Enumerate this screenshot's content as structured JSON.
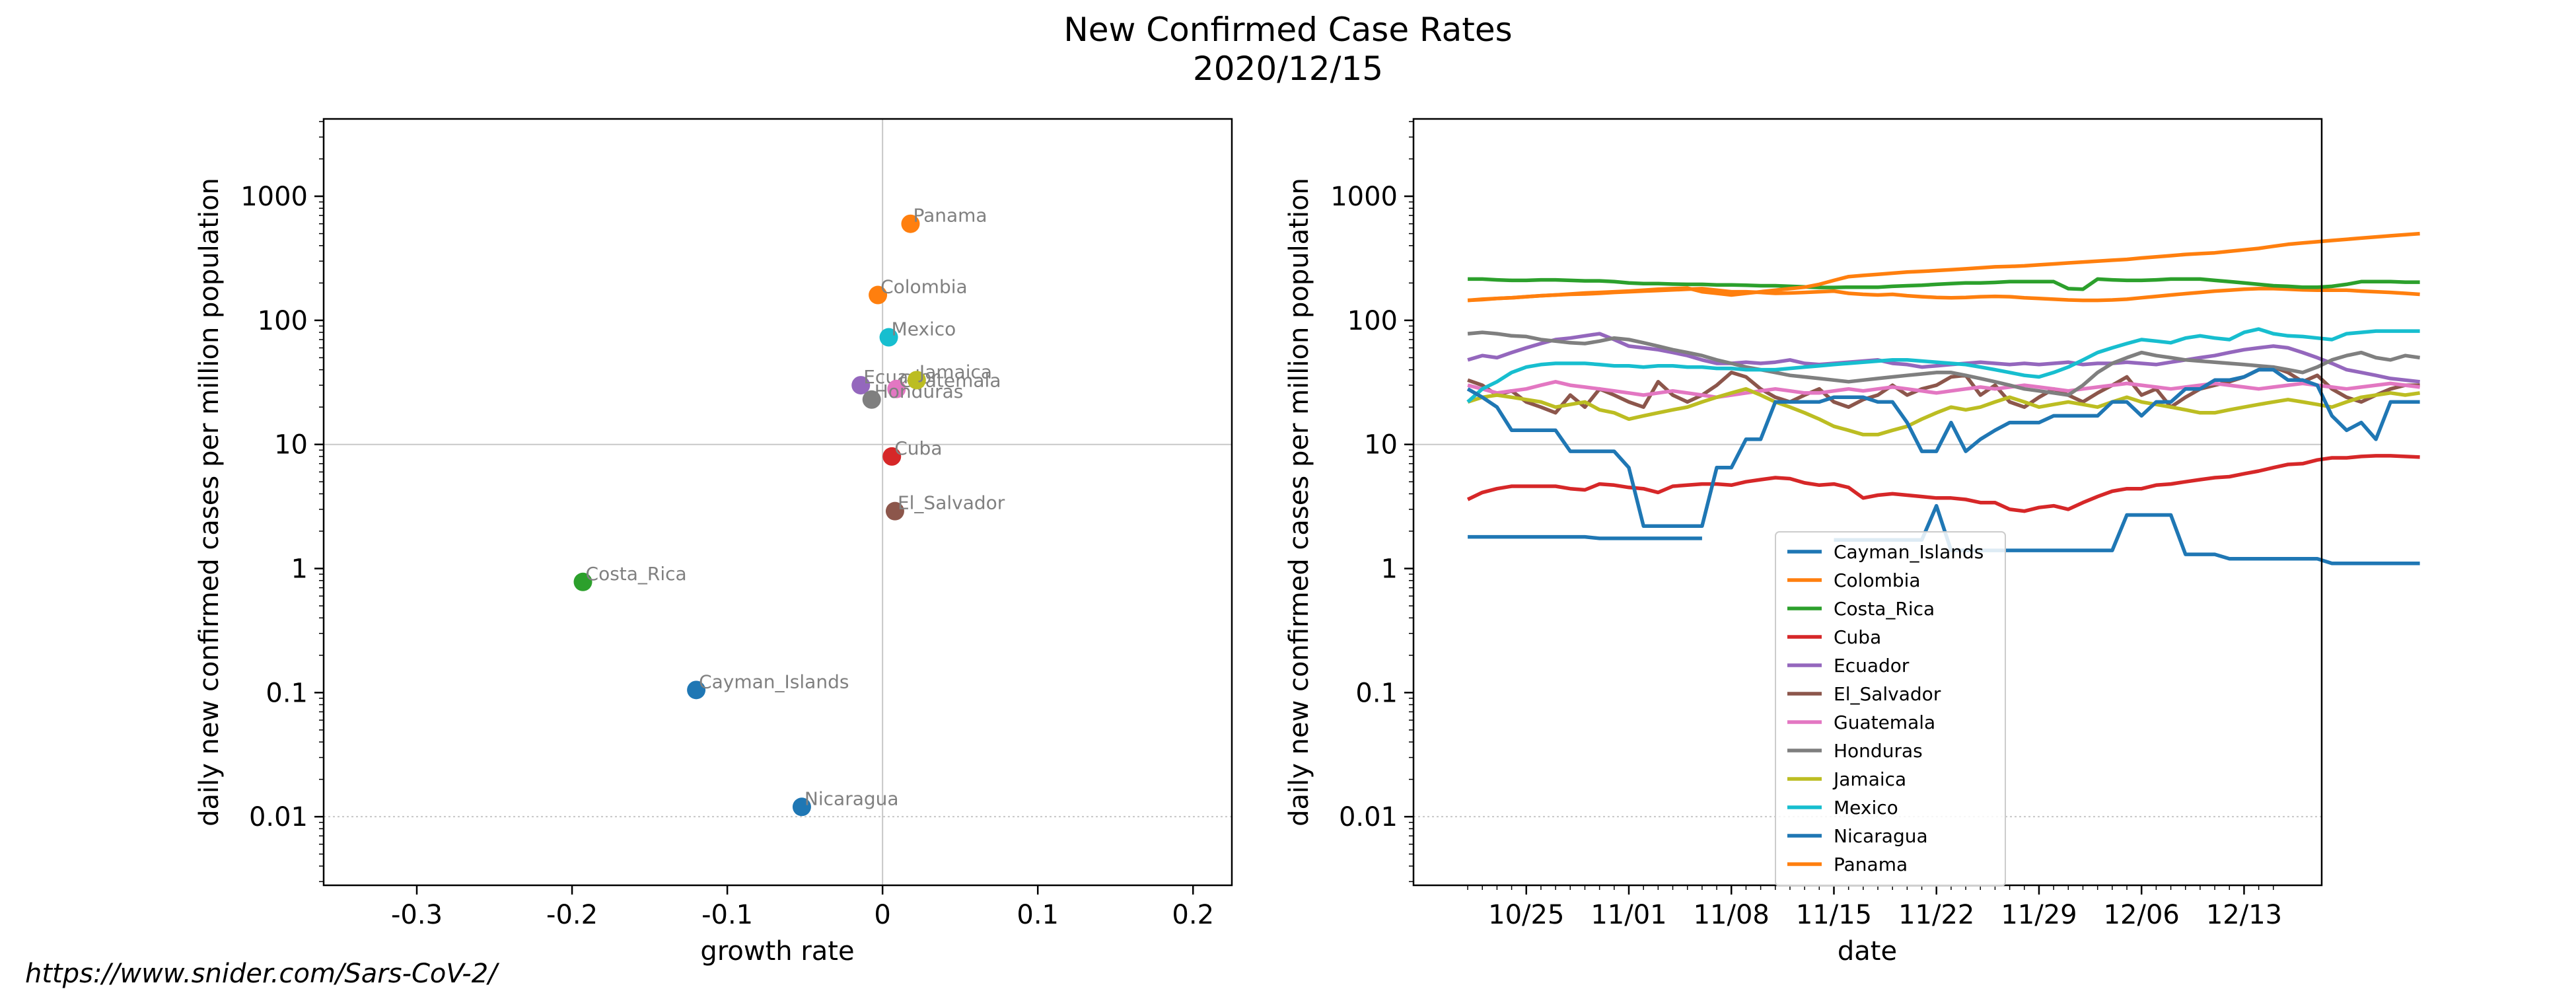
{
  "title": "New Confirmed Case Rates",
  "subtitle": "2020/12/15",
  "footer_url": "https://www.snider.com/Sars-CoV-2/",
  "chart_data": [
    {
      "type": "scatter",
      "xlabel": "growth rate",
      "ylabel": "daily new confirmed cases per million population",
      "xlim": [
        -0.36,
        0.225
      ],
      "ylim": [
        0.0028,
        4200
      ],
      "yscale": "log",
      "x_ticks": [
        -0.3,
        -0.2,
        -0.1,
        0,
        0.1,
        0.2
      ],
      "x_tick_labels": [
        "-0.3",
        "-0.2",
        "-0.1",
        "0",
        "0.1",
        "0.2"
      ],
      "y_ticks": [
        0.01,
        0.1,
        1,
        10,
        100,
        1000
      ],
      "y_tick_labels": [
        "0.01",
        "0.1",
        "1",
        "10",
        "100",
        "1000"
      ],
      "reference_lines": {
        "x": 0,
        "y": 10,
        "dotted_y": 0.01
      },
      "points": [
        {
          "label": "Cayman_Islands",
          "x": -0.12,
          "y": 0.105,
          "color": "#1f77b4"
        },
        {
          "label": "Colombia",
          "x": -0.003,
          "y": 160,
          "color": "#ff7f0e"
        },
        {
          "label": "Costa_Rica",
          "x": -0.193,
          "y": 0.78,
          "color": "#2ca02c"
        },
        {
          "label": "Cuba",
          "x": 0.006,
          "y": 8.0,
          "color": "#d62728"
        },
        {
          "label": "Ecuador",
          "x": -0.014,
          "y": 30,
          "color": "#9467bd"
        },
        {
          "label": "El_Salvador",
          "x": 0.008,
          "y": 2.9,
          "color": "#8c564b"
        },
        {
          "label": "Guatemala",
          "x": 0.009,
          "y": 28,
          "color": "#e377c2"
        },
        {
          "label": "Honduras",
          "x": -0.007,
          "y": 23,
          "color": "#7f7f7f"
        },
        {
          "label": "Jamaica",
          "x": 0.022,
          "y": 33,
          "color": "#bcbd22"
        },
        {
          "label": "Mexico",
          "x": 0.004,
          "y": 73,
          "color": "#17becf"
        },
        {
          "label": "Nicaragua",
          "x": -0.052,
          "y": 0.012,
          "color": "#1f77b4"
        },
        {
          "label": "Panama",
          "x": 0.018,
          "y": 600,
          "color": "#ff7f0e"
        }
      ]
    },
    {
      "type": "line",
      "xlabel": "date",
      "ylabel": "daily new confirmed cases per million population",
      "yscale": "log",
      "ylim": [
        0.0028,
        4200
      ],
      "x_start": "2020-10-21",
      "xlim_days": [
        -3.7,
        58.3
      ],
      "x_tick_days": [
        4,
        11,
        18,
        25,
        32,
        39,
        46,
        53
      ],
      "x_tick_labels": [
        "10/25",
        "11/01",
        "11/08",
        "11/15",
        "11/22",
        "11/29",
        "12/06",
        "12/13"
      ],
      "y_ticks": [
        0.01,
        0.1,
        1,
        10,
        100,
        1000
      ],
      "y_tick_labels": [
        "0.01",
        "0.1",
        "1",
        "10",
        "100",
        "1000"
      ],
      "reference_lines": {
        "y": 10,
        "dotted_y": 0.01
      },
      "legend_position": "lower center",
      "series": [
        {
          "name": "Cayman_Islands",
          "color": "#1f77b4",
          "values": [
            1.8,
            1.8,
            1.8,
            1.8,
            1.8,
            1.8,
            1.8,
            1.8,
            1.8,
            1.75,
            1.75,
            1.75,
            1.75,
            1.75,
            1.75,
            1.75,
            1.75,
            null,
            null,
            null,
            null,
            null,
            null,
            null,
            null,
            1.7,
            1.7,
            1.7,
            1.7,
            1.7,
            1.7,
            1.7,
            3.2,
            1.4,
            1.4,
            1.4,
            1.4,
            1.4,
            1.4,
            1.4,
            1.4,
            1.4,
            1.4,
            1.4,
            1.4,
            2.7,
            2.7,
            2.7,
            2.7,
            1.3,
            1.3,
            1.3,
            1.2,
            1.2,
            1.2,
            1.2,
            1.2,
            1.2,
            1.2,
            1.1,
            1.1,
            1.1,
            1.1,
            1.1,
            1.1,
            1.1
          ]
        },
        {
          "name": "Colombia",
          "color": "#ff7f0e",
          "values": [
            145,
            147,
            150,
            152,
            155,
            158,
            160,
            162,
            163,
            165,
            168,
            170,
            172,
            174,
            176,
            178,
            180,
            175,
            170,
            170,
            168,
            165,
            166,
            168,
            170,
            172,
            165,
            162,
            160,
            162,
            158,
            155,
            153,
            152,
            153,
            155,
            156,
            155,
            152,
            150,
            148,
            146,
            145,
            145,
            146,
            148,
            152,
            156,
            160,
            164,
            168,
            172,
            175,
            178,
            180,
            180,
            178,
            176,
            175,
            175,
            175,
            172,
            170,
            168,
            165,
            162
          ]
        },
        {
          "name": "Costa_Rica",
          "color": "#2ca02c",
          "values": [
            215,
            215,
            212,
            210,
            210,
            212,
            212,
            210,
            208,
            208,
            205,
            200,
            198,
            198,
            196,
            195,
            195,
            193,
            193,
            192,
            190,
            190,
            188,
            186,
            184,
            184,
            185,
            185,
            185,
            188,
            190,
            192,
            195,
            198,
            200,
            200,
            202,
            205,
            205,
            205,
            205,
            180,
            178,
            215,
            212,
            210,
            210,
            212,
            215,
            215,
            215,
            210,
            205,
            200,
            195,
            190,
            188,
            185,
            185,
            188,
            195,
            205,
            205,
            205,
            203,
            203
          ]
        },
        {
          "name": "Cuba",
          "color": "#d62728",
          "values": [
            3.6,
            4.1,
            4.4,
            4.6,
            4.6,
            4.6,
            4.6,
            4.4,
            4.3,
            4.8,
            4.7,
            4.5,
            4.4,
            4.1,
            4.6,
            4.7,
            4.8,
            4.8,
            4.7,
            5.0,
            5.2,
            5.4,
            5.3,
            4.9,
            4.7,
            4.8,
            4.5,
            3.7,
            3.9,
            4.0,
            3.9,
            3.8,
            3.7,
            3.7,
            3.6,
            3.4,
            3.4,
            3.0,
            2.9,
            3.1,
            3.2,
            3.0,
            3.4,
            3.8,
            4.2,
            4.4,
            4.4,
            4.7,
            4.8,
            5.0,
            5.2,
            5.4,
            5.5,
            5.8,
            6.1,
            6.5,
            6.9,
            7.0,
            7.5,
            7.8,
            7.8,
            8.0,
            8.1,
            8.1,
            8.0,
            7.9
          ]
        },
        {
          "name": "Ecuador",
          "color": "#9467bd",
          "values": [
            48,
            52,
            50,
            55,
            60,
            65,
            70,
            72,
            75,
            78,
            70,
            62,
            60,
            58,
            55,
            52,
            48,
            45,
            45,
            46,
            45,
            46,
            48,
            45,
            44,
            45,
            46,
            47,
            48,
            45,
            44,
            42,
            43,
            44,
            45,
            46,
            45,
            44,
            45,
            44,
            45,
            46,
            44,
            45,
            45,
            46,
            45,
            44,
            46,
            48,
            50,
            52,
            55,
            58,
            60,
            62,
            60,
            55,
            50,
            45,
            40,
            38,
            36,
            34,
            33,
            32
          ]
        },
        {
          "name": "El_Salvador",
          "color": "#8c564b",
          "values": [
            33,
            30,
            25,
            27,
            22,
            20,
            18,
            25,
            20,
            28,
            25,
            22,
            20,
            32,
            25,
            22,
            25,
            30,
            38,
            35,
            28,
            24,
            22,
            25,
            28,
            22,
            20,
            23,
            25,
            30,
            25,
            28,
            30,
            35,
            36,
            25,
            30,
            22,
            20,
            24,
            28,
            25,
            22,
            26,
            30,
            35,
            25,
            28,
            20,
            24,
            28,
            30,
            32,
            35,
            40,
            42,
            38,
            32,
            36,
            28,
            24,
            22,
            25,
            28,
            30,
            30
          ]
        },
        {
          "name": "Guatemala",
          "color": "#e377c2",
          "values": [
            30,
            28,
            26,
            27,
            28,
            30,
            32,
            30,
            29,
            28,
            27,
            26,
            25,
            26,
            27,
            26,
            25,
            24,
            25,
            26,
            27,
            28,
            27,
            26,
            26,
            27,
            28,
            27,
            28,
            29,
            28,
            27,
            26,
            27,
            28,
            29,
            28,
            29,
            30,
            29,
            28,
            27,
            28,
            29,
            30,
            31,
            30,
            29,
            28,
            29,
            30,
            31,
            30,
            29,
            28,
            29,
            30,
            31,
            30,
            29,
            28,
            29,
            30,
            31,
            30,
            29
          ]
        },
        {
          "name": "Honduras",
          "color": "#7f7f7f",
          "values": [
            78,
            80,
            78,
            75,
            74,
            70,
            68,
            66,
            65,
            68,
            72,
            70,
            66,
            62,
            58,
            55,
            52,
            48,
            45,
            42,
            40,
            38,
            36,
            35,
            34,
            33,
            32,
            33,
            34,
            35,
            36,
            37,
            38,
            38,
            36,
            34,
            32,
            30,
            28,
            27,
            26,
            25,
            30,
            38,
            45,
            50,
            55,
            52,
            50,
            48,
            47,
            46,
            45,
            44,
            43,
            42,
            40,
            38,
            42,
            48,
            52,
            55,
            50,
            48,
            52,
            50
          ]
        },
        {
          "name": "Jamaica",
          "color": "#bcbd22",
          "values": [
            22,
            24,
            25,
            24,
            23,
            22,
            20,
            21,
            22,
            19,
            18,
            16,
            17,
            18,
            19,
            20,
            22,
            24,
            26,
            28,
            25,
            22,
            20,
            18,
            16,
            14,
            13,
            12,
            12,
            13,
            14,
            16,
            18,
            20,
            19,
            20,
            22,
            24,
            22,
            20,
            21,
            22,
            21,
            20,
            22,
            24,
            22,
            21,
            20,
            19,
            18,
            18,
            19,
            20,
            21,
            22,
            23,
            22,
            21,
            20,
            22,
            24,
            25,
            26,
            25,
            26
          ]
        },
        {
          "name": "Mexico",
          "color": "#17becf",
          "values": [
            22,
            28,
            32,
            38,
            42,
            44,
            45,
            45,
            45,
            44,
            43,
            43,
            42,
            43,
            43,
            42,
            42,
            41,
            41,
            40,
            40,
            40,
            41,
            42,
            43,
            44,
            45,
            46,
            47,
            48,
            48,
            47,
            46,
            45,
            44,
            42,
            40,
            38,
            36,
            35,
            38,
            42,
            48,
            55,
            60,
            65,
            70,
            68,
            66,
            72,
            75,
            72,
            70,
            80,
            85,
            78,
            75,
            74,
            72,
            70,
            78,
            80,
            82,
            82,
            82,
            82
          ]
        },
        {
          "name": "Nicaragua",
          "color": "#1f77b4",
          "values": [
            28,
            24,
            20,
            13,
            13,
            13,
            13,
            8.8,
            8.8,
            8.8,
            8.8,
            6.5,
            2.2,
            2.2,
            2.2,
            2.2,
            2.2,
            6.5,
            6.5,
            11,
            11,
            22,
            22,
            22,
            22,
            24,
            24,
            24,
            22,
            22,
            15,
            8.8,
            8.8,
            15,
            8.8,
            11,
            13,
            15,
            15,
            15,
            17,
            17,
            17,
            17,
            22,
            22,
            17,
            22,
            22,
            28,
            28,
            33,
            33,
            35,
            40,
            40,
            33,
            33,
            30,
            17,
            13,
            15,
            11,
            22,
            22,
            22
          ]
        },
        {
          "name": "Panama",
          "color": "#ff7f0e",
          "values": [
            145,
            148,
            150,
            152,
            155,
            158,
            160,
            163,
            166,
            168,
            170,
            172,
            175,
            178,
            180,
            182,
            170,
            165,
            160,
            165,
            170,
            175,
            180,
            185,
            195,
            210,
            225,
            230,
            235,
            240,
            245,
            248,
            252,
            256,
            260,
            265,
            270,
            272,
            275,
            280,
            285,
            290,
            295,
            300,
            305,
            310,
            318,
            325,
            332,
            340,
            345,
            350,
            360,
            370,
            380,
            395,
            410,
            420,
            430,
            440,
            450,
            460,
            470,
            480,
            490,
            500
          ]
        }
      ]
    }
  ]
}
